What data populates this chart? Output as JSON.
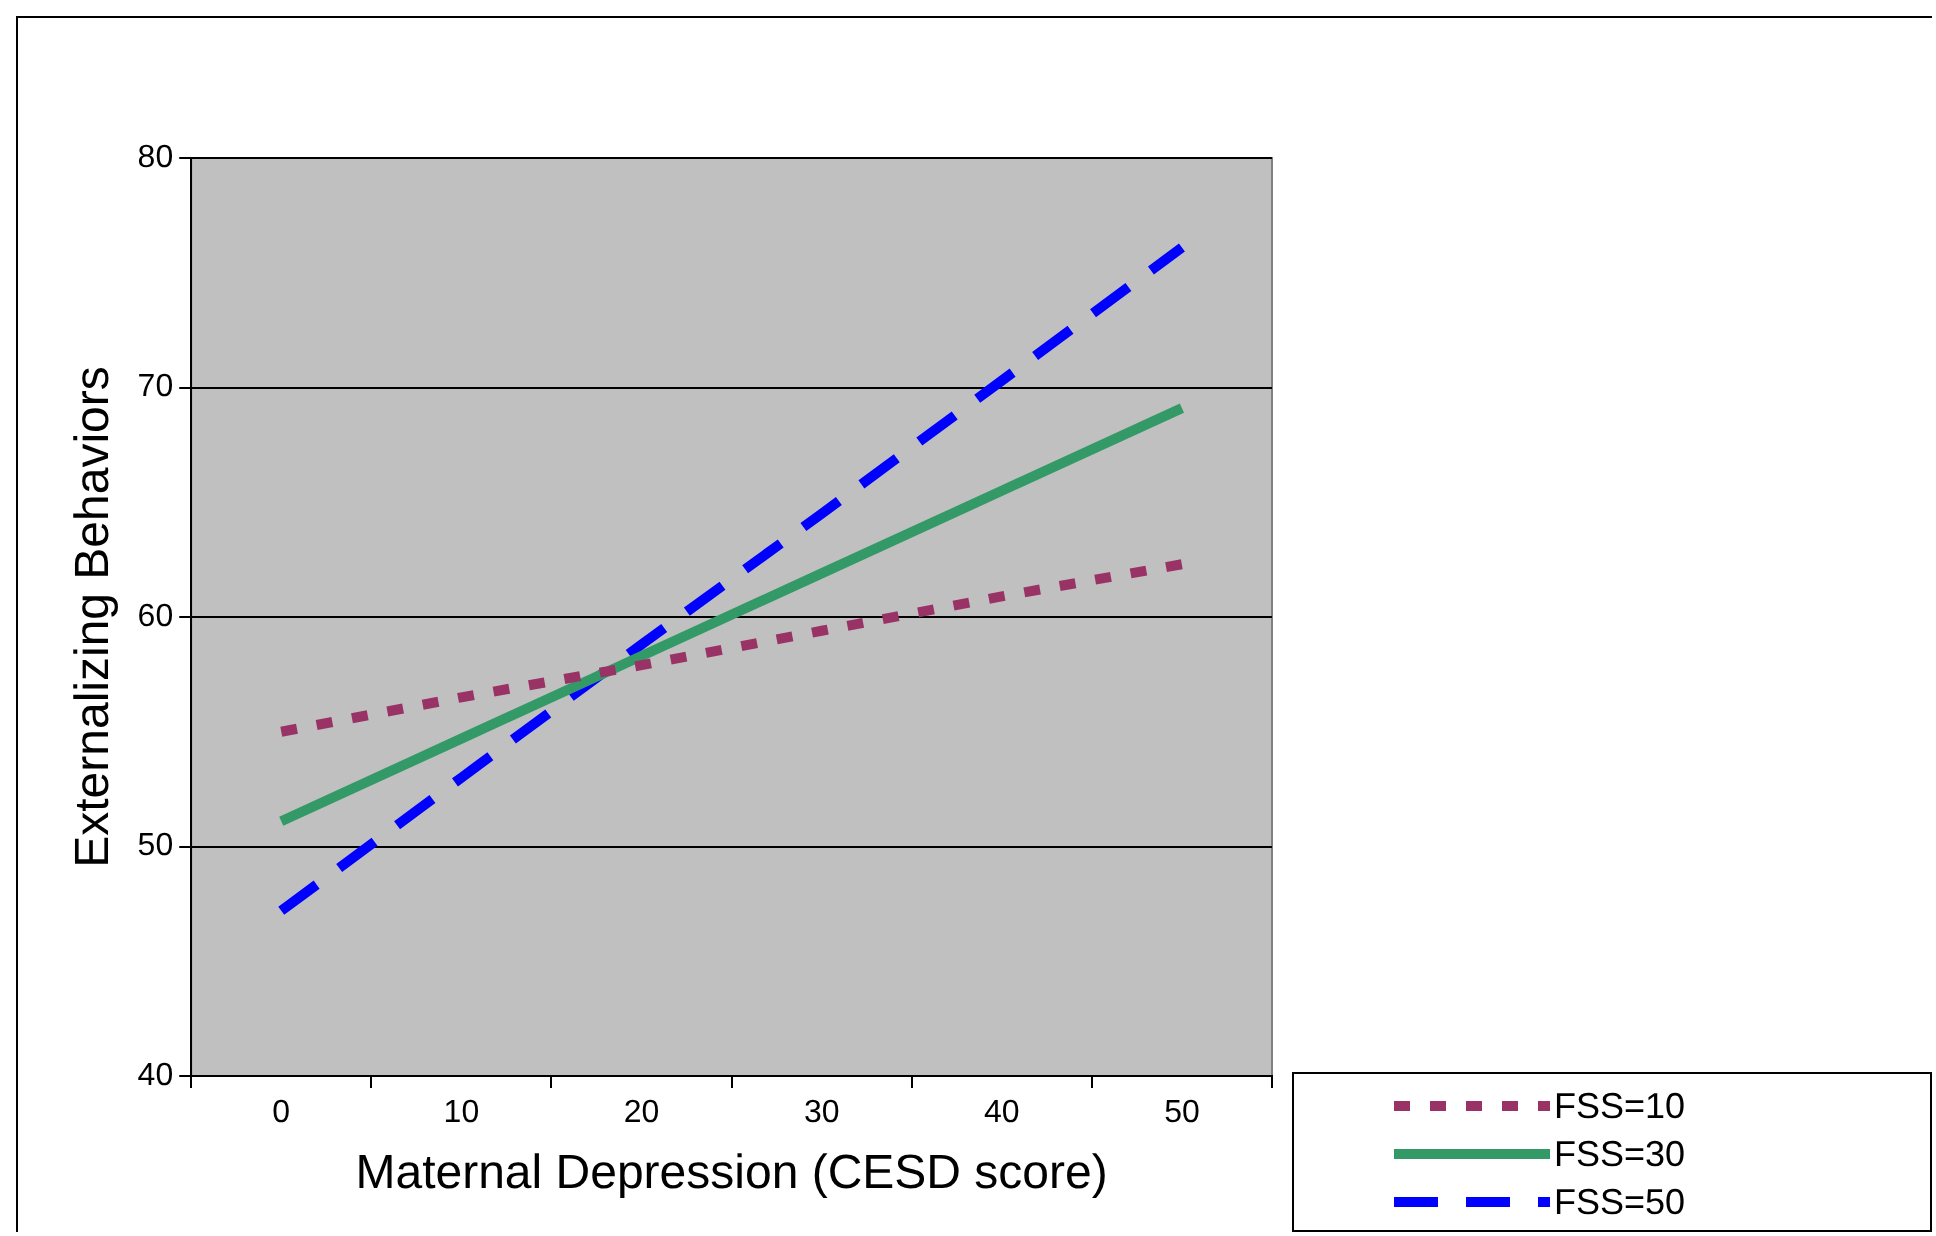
{
  "chart_data": {
    "type": "line",
    "xlabel": "Maternal Depression (CESD score)",
    "ylabel": "Externalizing Behaviors",
    "categories": [
      "0",
      "10",
      "20",
      "30",
      "40",
      "50"
    ],
    "series": [
      {
        "name": "FSS=10",
        "color": "#993366",
        "line_style": "dashed",
        "values": [
          55,
          56.5,
          57.9,
          59.4,
          60.9,
          62.3
        ]
      },
      {
        "name": "FSS=30",
        "color": "#339966",
        "line_style": "solid",
        "values": [
          51.1,
          54.7,
          58.3,
          61.9,
          65.5,
          69.1
        ]
      },
      {
        "name": "FSS=50",
        "color": "#0000ff",
        "line_style": "dashed",
        "values": [
          47.2,
          53,
          58.8,
          64.5,
          70.3,
          76.1
        ]
      }
    ],
    "ylim": [
      40,
      80
    ],
    "yticks": [
      40,
      50,
      60,
      70,
      80
    ],
    "grid": "y",
    "legend": "bottom right",
    "marker": "none"
  }
}
